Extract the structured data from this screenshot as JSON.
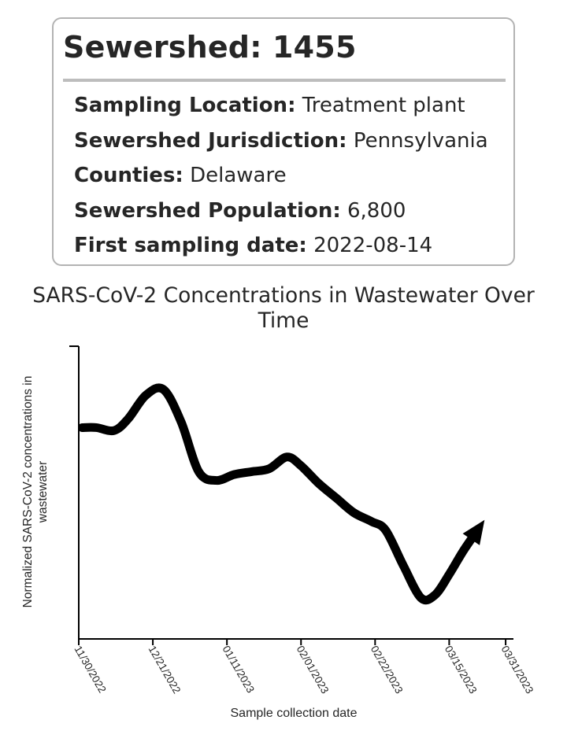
{
  "card": {
    "title": "Sewershed: 1455",
    "fields": [
      {
        "label": "Sampling Location:",
        "value": "Treatment plant"
      },
      {
        "label": "Sewershed Jurisdiction:",
        "value": "Pennsylvania"
      },
      {
        "label": "Counties:",
        "value": "Delaware"
      },
      {
        "label": "Sewershed Population:",
        "value": "6,800"
      },
      {
        "label": "First sampling date:",
        "value": "2022-08-14"
      }
    ]
  },
  "chart_data": {
    "type": "line",
    "title_lines": [
      "SARS-CoV-2 Concentrations in Wastewater Over",
      "Time"
    ],
    "xlabel": "Sample collection date",
    "ylabel_lines": [
      "Normalized SARS-CoV-2 concentrations in",
      "wastewater"
    ],
    "x_ticks": [
      "11/30/2022",
      "12/21/2022",
      "01/11/2023",
      "02/01/2023",
      "02/22/2023",
      "03/15/2023",
      "03/31/2023"
    ],
    "xlim": [
      "2022-11-30",
      "2023-03-31"
    ],
    "ylim": [
      0,
      1
    ],
    "y_ticks": [],
    "grid": false,
    "arrow_at_end": true,
    "line_color": "#000000",
    "series": [
      {
        "x": [
          "2022-12-01",
          "2022-12-05",
          "2022-12-10",
          "2022-12-14",
          "2022-12-19",
          "2022-12-24",
          "2022-12-29",
          "2023-01-03",
          "2023-01-08",
          "2023-01-13",
          "2023-01-18",
          "2023-01-23",
          "2023-01-28",
          "2023-02-01",
          "2023-02-06",
          "2023-02-11",
          "2023-02-16",
          "2023-02-21",
          "2023-02-25",
          "2023-03-02",
          "2023-03-07",
          "2023-03-11",
          "2023-03-15",
          "2023-03-19",
          "2023-03-23"
        ],
        "y": [
          0.72,
          0.72,
          0.71,
          0.75,
          0.83,
          0.85,
          0.74,
          0.57,
          0.54,
          0.56,
          0.57,
          0.58,
          0.62,
          0.59,
          0.53,
          0.48,
          0.43,
          0.4,
          0.37,
          0.25,
          0.14,
          0.15,
          0.22,
          0.3,
          0.37
        ]
      }
    ]
  }
}
